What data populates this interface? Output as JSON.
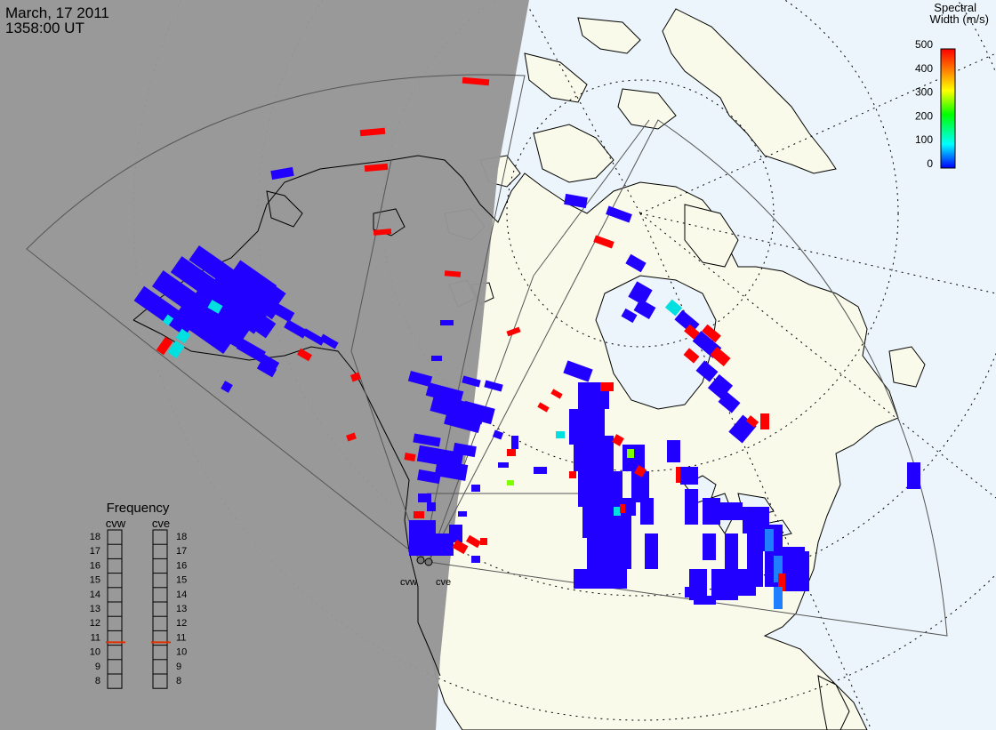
{
  "header": {
    "date": "March, 17 2011",
    "time": "1358:00 UT"
  },
  "colorbar": {
    "title_line1": "Spectral",
    "title_line2": "Width (m/s)",
    "ticks": [
      "500",
      "400",
      "300",
      "200",
      "100",
      "0"
    ],
    "colors": [
      "#0000ff",
      "#00ffff",
      "#00ff00",
      "#ffff00",
      "#ff8000",
      "#ff0000"
    ]
  },
  "frequency_panel": {
    "title": "Frequency",
    "left_label": "cvw",
    "right_label": "cve",
    "scale": [
      "18",
      "17",
      "16",
      "15",
      "14",
      "13",
      "12",
      "11",
      "10",
      "9",
      "8"
    ],
    "cvw_mhz": 10.7,
    "cve_mhz": 10.7,
    "marker_color": "#e03000"
  },
  "radars": [
    {
      "name": "cvw",
      "label": "cvw"
    },
    {
      "name": "cve",
      "label": "cve"
    }
  ],
  "colors": {
    "night_shade": "#969696",
    "land": "#fafaeb",
    "ocean": "#ecf5fb",
    "scatter_low": "#2200ff",
    "scatter_high": "#ff0000",
    "scatter_mid": "#00e0e0"
  }
}
